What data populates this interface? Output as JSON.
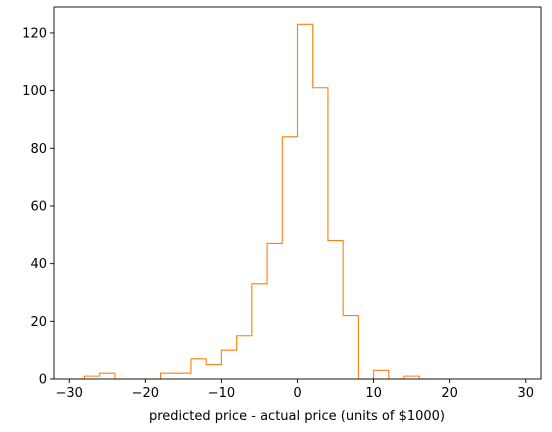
{
  "chart_data": {
    "type": "histogram",
    "histtype": "step",
    "title": "",
    "xlabel": "predicted price - actual price (units of $1000)",
    "ylabel": "",
    "xlim": [
      -32,
      32
    ],
    "ylim": [
      0,
      129
    ],
    "xticks": [
      -30,
      -20,
      -10,
      0,
      10,
      20,
      30
    ],
    "xtick_labels": [
      "−30",
      "−20",
      "−10",
      "0",
      "10",
      "20",
      "30"
    ],
    "yticks": [
      0,
      20,
      40,
      60,
      80,
      100,
      120
    ],
    "ytick_labels": [
      "0",
      "20",
      "40",
      "60",
      "80",
      "100",
      "120"
    ],
    "grid": false,
    "legend": "none",
    "color": "#ff7f0e",
    "bin_edges": [
      -30,
      -28,
      -26,
      -24,
      -22,
      -20,
      -18,
      -16,
      -14,
      -12,
      -10,
      -8,
      -6,
      -4,
      -2,
      0,
      2,
      4,
      6,
      8,
      10,
      12,
      14,
      16,
      18,
      20,
      22,
      24,
      26,
      28,
      30
    ],
    "counts": [
      0,
      1,
      2,
      0,
      0,
      0,
      2,
      2,
      7,
      5,
      10,
      15,
      33,
      47,
      84,
      123,
      101,
      48,
      22,
      0,
      3,
      0,
      1,
      0,
      0,
      0,
      0,
      0,
      0,
      0
    ]
  }
}
